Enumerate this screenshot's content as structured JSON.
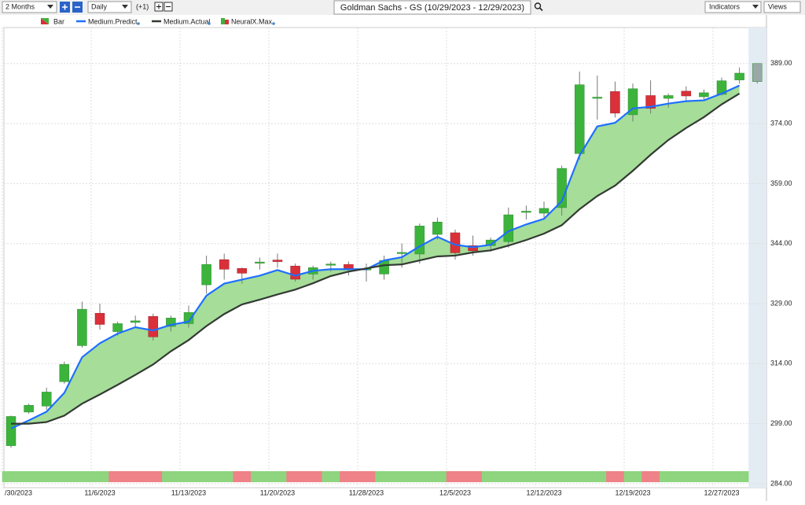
{
  "toolbar": {
    "period": "2 Months",
    "interval": "Daily",
    "offset": "(+1)",
    "symbol_title": "Goldman Sachs - GS (10/29/2023 - 12/29/2023)",
    "indicators": "Indicators",
    "views": "Views"
  },
  "chart_data": {
    "type": "candlestick",
    "categories": [
      "/30/2023",
      null,
      null,
      null,
      null,
      "11/6/2023",
      null,
      null,
      null,
      null,
      "11/13/2023",
      null,
      null,
      null,
      null,
      "11/20/2023",
      null,
      null,
      null,
      null,
      "11/28/2023",
      null,
      null,
      null,
      null,
      "12/5/2023",
      null,
      null,
      null,
      null,
      "12/12/2023",
      null,
      null,
      null,
      null,
      "12/19/2023",
      null,
      null,
      null,
      null,
      "12/27/2023",
      null,
      null
    ],
    "candles": {
      "name": "Bar",
      "up_color": "#3cb43c",
      "down_color": "#d9303a",
      "forecast_color": "#9aa8a8",
      "open": [
        293.5,
        301.9,
        303.4,
        309.5,
        318.5,
        326.6,
        322,
        324.3,
        325.8,
        323.3,
        324,
        333.7,
        340,
        337.8,
        339.2,
        339.9,
        338.4,
        336.4,
        338.6,
        338.8,
        337.5,
        336.4,
        341.5,
        341.4,
        346.3,
        346.7,
        343.5,
        343.5,
        344.5,
        351.8,
        351.6,
        353,
        366.5,
        380.3,
        382,
        376.2,
        381,
        380.3,
        382.1,
        380.7,
        381.3,
        384.9,
        384.5
      ],
      "high": [
        301,
        304,
        308,
        314.5,
        329.5,
        329,
        324.5,
        326,
        326.5,
        326,
        328.5,
        341,
        341.5,
        338,
        340.5,
        341.5,
        339,
        338.5,
        339.5,
        339.5,
        339,
        341,
        344,
        349,
        350.5,
        347.5,
        346,
        345.5,
        353,
        353.5,
        354.5,
        363.5,
        387,
        386,
        384.5,
        384,
        384.8,
        381.5,
        383.3,
        382.5,
        385.5,
        388,
        389
      ],
      "low": [
        293,
        301.5,
        302.5,
        309,
        318,
        322.5,
        321,
        323,
        319.8,
        322,
        323,
        331.5,
        335,
        334,
        337.5,
        338,
        334.5,
        335,
        337,
        336,
        334.5,
        335,
        338,
        339,
        345,
        340,
        341,
        342,
        343,
        350,
        350.5,
        351,
        365,
        375,
        375.5,
        374.5,
        376.5,
        378,
        379.5,
        379.8,
        381,
        384,
        384
      ],
      "close": [
        300.8,
        303.6,
        306.9,
        313.8,
        327.6,
        323.8,
        324,
        324.7,
        320.7,
        325.4,
        326.8,
        338.8,
        337.6,
        336.6,
        339.4,
        339.5,
        335.1,
        338,
        338.9,
        337.8,
        337.7,
        339.8,
        341.8,
        348.4,
        349.4,
        341.7,
        342.2,
        344.9,
        351.2,
        352.1,
        352.8,
        362.8,
        383.7,
        380.6,
        376.6,
        382.7,
        377.8,
        381,
        380.9,
        381.7,
        384.7,
        386.6,
        389
      ]
    },
    "series": [
      {
        "name": "Medium.Predict",
        "color": "#1f6fff",
        "values": [
          297.8,
          299.8,
          302,
          306.7,
          315.6,
          319.1,
          321.5,
          323.1,
          322.3,
          323.7,
          324.5,
          331,
          334,
          335,
          336,
          337.4,
          336,
          337.2,
          337.6,
          337.6,
          337.6,
          339.8,
          340.6,
          343.3,
          345.7,
          343.7,
          343.1,
          343.7,
          347.1,
          348.8,
          350.2,
          354.6,
          366,
          373.3,
          374.2,
          377.8,
          378.2,
          379,
          379.6,
          379.8,
          381.5,
          383.5,
          null
        ]
      },
      {
        "name": "Medium.Actual",
        "color": "#333a33",
        "values": [
          299,
          299,
          299.4,
          301,
          304,
          306.3,
          308.7,
          311.2,
          313.8,
          317.1,
          319.9,
          323.4,
          326.4,
          328.8,
          330,
          331.3,
          332.5,
          334.1,
          335.9,
          337,
          337.8,
          338.6,
          338.8,
          339.8,
          340.8,
          341,
          341.8,
          342.3,
          343.5,
          344.9,
          346.5,
          348.6,
          352.6,
          355.9,
          358.5,
          362.2,
          366.2,
          369.9,
          372.9,
          375.6,
          378.8,
          381.5,
          null
        ]
      }
    ],
    "signal": {
      "name": "NeuralX.Max",
      "colors": [
        "#8fd57f",
        "#8fd57f",
        "#8fd57f",
        "#8fd57f",
        "#8fd57f",
        "#8fd57f",
        "#ee8288",
        "#ee8288",
        "#ee8288",
        "#8fd57f",
        "#8fd57f",
        "#8fd57f",
        "#8fd57f",
        "#ee8288",
        "#8fd57f",
        "#8fd57f",
        "#ee8288",
        "#ee8288",
        "#8fd57f",
        "#ee8288",
        "#ee8288",
        "#8fd57f",
        "#8fd57f",
        "#8fd57f",
        "#8fd57f",
        "#ee8288",
        "#ee8288",
        "#8fd57f",
        "#8fd57f",
        "#8fd57f",
        "#8fd57f",
        "#8fd57f",
        "#8fd57f",
        "#8fd57f",
        "#ee8288",
        "#8fd57f",
        "#ee8288",
        "#8fd57f",
        "#8fd57f",
        "#8fd57f",
        "#8fd57f",
        "#8fd57f",
        null
      ]
    },
    "fill_color": "#9bd98e",
    "shade_last": true,
    "ylim": [
      283,
      398
    ],
    "yticks": [
      {
        "value": 284,
        "label": "284.00"
      },
      {
        "value": 299,
        "label": "299.00"
      },
      {
        "value": 314,
        "label": "314.00"
      },
      {
        "value": 329,
        "label": "329.00"
      },
      {
        "value": 344,
        "label": "344.00"
      },
      {
        "value": 359,
        "label": "359.00"
      },
      {
        "value": 374,
        "label": "374.00"
      },
      {
        "value": 389,
        "label": "389.00"
      }
    ],
    "grid": true
  }
}
